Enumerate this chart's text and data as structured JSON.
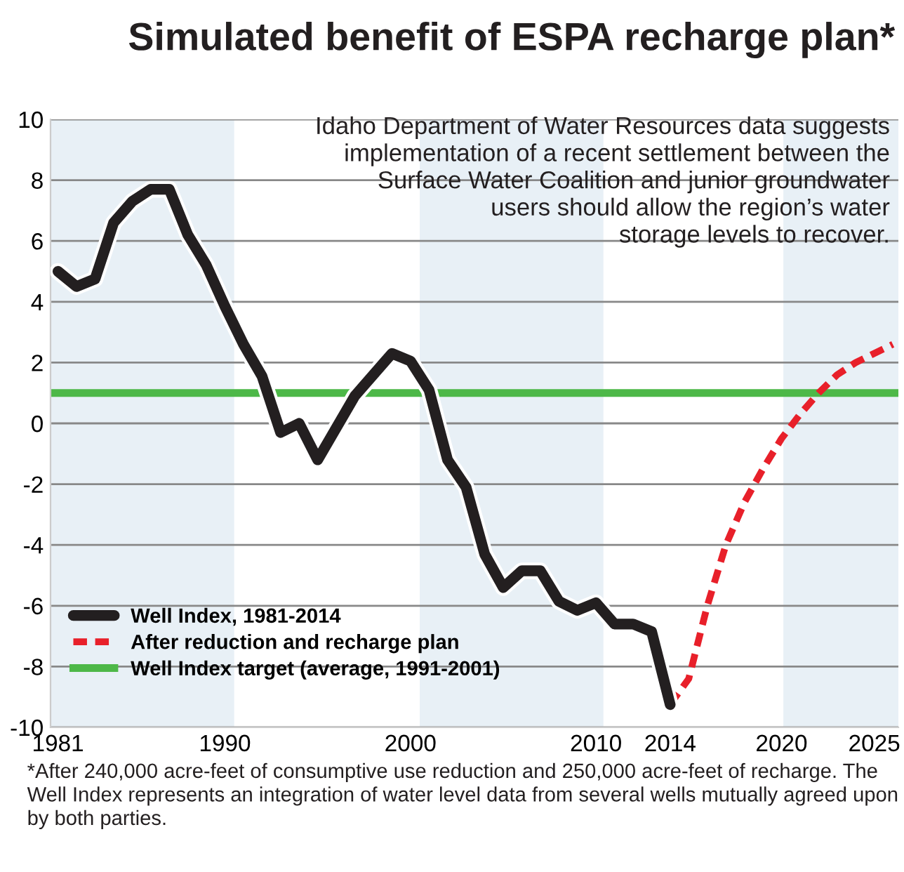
{
  "chart_data": {
    "type": "line",
    "title": "Simulated benefit of ESPA recharge plan*",
    "subtitle": "Idaho Department of Water Resources data suggests\nimplementation of a recent settlement between the\nSurface Water Coalition and junior groundwater\nusers should allow the region’s water\nstorage levels to recover.",
    "annotations": [
      "*After 240,000 acre-feet of consumptive use reduction and 250,000 acre-feet of recharge. The Well Index represents an integration of water level data from several wells mutually agreed upon by both parties."
    ],
    "series": [
      {
        "name": "Well Index, 1981-2014",
        "color": "#231f20",
        "line_style": "solid",
        "x": [
          1981,
          1982,
          1983,
          1984,
          1985,
          1986,
          1987,
          1988,
          1989,
          1990,
          1991,
          1992,
          1993,
          1994,
          1995,
          1997,
          1999,
          2000,
          2001,
          2002,
          2003,
          2004,
          2005,
          2006,
          2007,
          2008,
          2009,
          2010,
          2011,
          2012,
          2013,
          2014
        ],
        "values": [
          5.0,
          4.5,
          4.75,
          6.6,
          7.3,
          7.7,
          7.7,
          6.2,
          5.2,
          3.85,
          2.6,
          1.55,
          -0.3,
          0.0,
          -1.2,
          0.9,
          2.3,
          2.05,
          1.1,
          -1.2,
          -2.1,
          -4.3,
          -5.4,
          -4.85,
          -4.85,
          -5.85,
          -6.15,
          -5.9,
          -6.6,
          -6.6,
          -6.85,
          -9.25
        ]
      },
      {
        "name": "After reduction and recharge plan",
        "color": "#e8202a",
        "line_style": "dashed",
        "x": [
          2014,
          2015,
          2016,
          2017,
          2018,
          2019,
          2020,
          2021,
          2022,
          2023,
          2024,
          2025,
          2026
        ],
        "values": [
          -9.25,
          -8.4,
          -6.0,
          -4.0,
          -2.6,
          -1.5,
          -0.5,
          0.3,
          1.0,
          1.6,
          2.0,
          2.3,
          2.6
        ]
      }
    ],
    "ref_lines": [
      {
        "axis": "y",
        "value": 1,
        "label": "Well Index target (average, 1991-2001)",
        "color": "#4db848",
        "line_style": "solid"
      }
    ],
    "bands": [
      {
        "axis": "x",
        "from": 1980.6,
        "to": 1990.5,
        "color": "#e8f0f6"
      },
      {
        "axis": "x",
        "from": 2000.5,
        "to": 2010.4,
        "color": "#e8f0f6"
      },
      {
        "axis": "x",
        "from": 2020.1,
        "to": 2026.3,
        "color": "#e8f0f6"
      }
    ],
    "xlim": [
      1980.6,
      2026.3
    ],
    "xticks": [
      1981,
      1990,
      2000,
      2010,
      2014,
      2020,
      2025
    ],
    "ylim": [
      -10,
      10
    ],
    "yticks": [
      -10,
      -8,
      -6,
      -4,
      -2,
      0,
      2,
      4,
      6,
      8,
      10
    ],
    "grid": "y",
    "legend": "bottom left",
    "marker": "none"
  }
}
